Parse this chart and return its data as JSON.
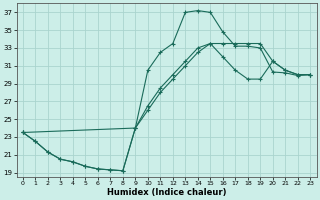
{
  "xlabel": "Humidex (Indice chaleur)",
  "bg_color": "#cceee8",
  "grid_color": "#aad4ce",
  "line_color": "#1a6b5a",
  "xlim": [
    -0.5,
    23.5
  ],
  "ylim": [
    18.5,
    38
  ],
  "yticks": [
    19,
    21,
    23,
    25,
    27,
    29,
    31,
    33,
    35,
    37
  ],
  "xticks": [
    0,
    1,
    2,
    3,
    4,
    5,
    6,
    7,
    8,
    9,
    10,
    11,
    12,
    13,
    14,
    15,
    16,
    17,
    18,
    19,
    20,
    21,
    22,
    23
  ],
  "line1_x": [
    0,
    1,
    2,
    3,
    4,
    5,
    6,
    7,
    8,
    9,
    10,
    11,
    12,
    13,
    14,
    15,
    16,
    17,
    18,
    19,
    20,
    21,
    22,
    23
  ],
  "line1_y": [
    23.5,
    22.5,
    21.3,
    20.5,
    20.2,
    19.7,
    19.4,
    19.3,
    19.2,
    24.0,
    30.5,
    32.5,
    33.5,
    37.0,
    37.2,
    37.0,
    34.8,
    33.2,
    33.2,
    33.0,
    30.3,
    30.2,
    29.9,
    30.0
  ],
  "line2_x": [
    0,
    1,
    2,
    3,
    4,
    5,
    6,
    7,
    8,
    9,
    10,
    11,
    12,
    13,
    14,
    15,
    16,
    17,
    18,
    19,
    20,
    21,
    22,
    23
  ],
  "line2_y": [
    23.5,
    22.5,
    21.3,
    20.5,
    20.2,
    19.7,
    19.4,
    19.3,
    19.2,
    24.0,
    26.5,
    28.5,
    30.0,
    31.5,
    33.0,
    33.5,
    32.0,
    30.5,
    29.5,
    29.5,
    31.5,
    30.5,
    30.0,
    30.0
  ],
  "line3_x": [
    0,
    9,
    10,
    11,
    12,
    13,
    14,
    15,
    16,
    17,
    18,
    19,
    20,
    21,
    22,
    23
  ],
  "line3_y": [
    23.5,
    24.0,
    26.0,
    28.0,
    29.5,
    31.0,
    32.5,
    33.5,
    33.5,
    33.5,
    33.5,
    33.5,
    31.5,
    30.5,
    30.0,
    30.0
  ]
}
